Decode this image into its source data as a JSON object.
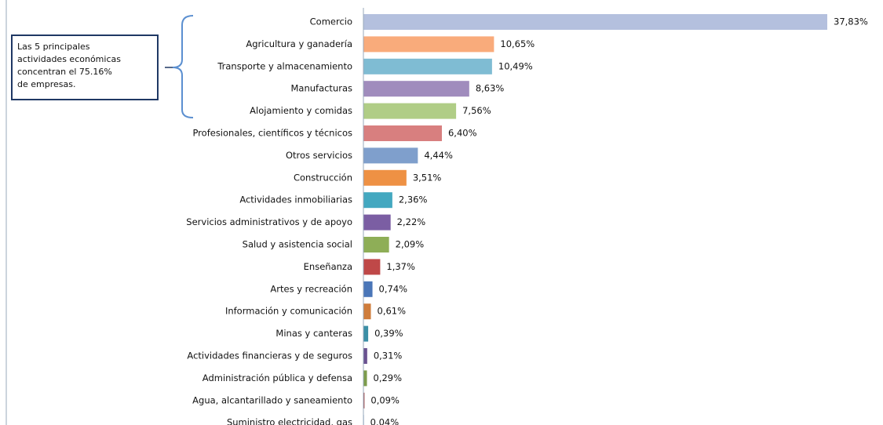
{
  "chart_data": {
    "type": "barh",
    "categories": [
      "Comercio",
      "Agricultura y ganadería",
      "Transporte y almacenamiento",
      "Manufacturas",
      "Alojamiento y comidas",
      "Profesionales, científicos y técnicos",
      "Otros servicios",
      "Construcción",
      "Actividades inmobiliarias",
      "Servicios administrativos y de apoyo",
      "Salud y asistencia social",
      "Enseñanza",
      "Artes y recreación",
      "Información y comunicación",
      "Minas y canteras",
      "Actividades financieras y de seguros",
      "Administración pública y defensa",
      "Agua, alcantarillado y saneamiento",
      "Suministro electricidad, gas"
    ],
    "values": [
      37.83,
      10.65,
      10.49,
      8.63,
      7.56,
      6.4,
      4.44,
      3.51,
      2.36,
      2.22,
      2.09,
      1.37,
      0.74,
      0.61,
      0.39,
      0.31,
      0.29,
      0.09,
      0.04
    ],
    "value_labels": [
      "37,83%",
      "10,65%",
      "10,49%",
      "8,63%",
      "7,56%",
      "6,40%",
      "4,44%",
      "3,51%",
      "2,36%",
      "2,22%",
      "2,09%",
      "1,37%",
      "0,74%",
      "0,61%",
      "0,39%",
      "0,31%",
      "0,29%",
      "0,09%",
      "0,04%"
    ],
    "colors": [
      "#b4c0de",
      "#f9ab7b",
      "#7fbcd3",
      "#a08cbd",
      "#b0cd86",
      "#d87f7f",
      "#7f9fcc",
      "#ee9144",
      "#43a8c0",
      "#7b5ea3",
      "#8eae57",
      "#bf4848",
      "#4a76b8",
      "#cf7d3c",
      "#3b8fa6",
      "#6a5290",
      "#7d9c4c",
      "#a34c4c",
      "#3d6aa8"
    ],
    "annotation": [
      "Las 5 principales",
      "actividades económicas",
      "concentran el 75.16%",
      "de empresas."
    ]
  }
}
